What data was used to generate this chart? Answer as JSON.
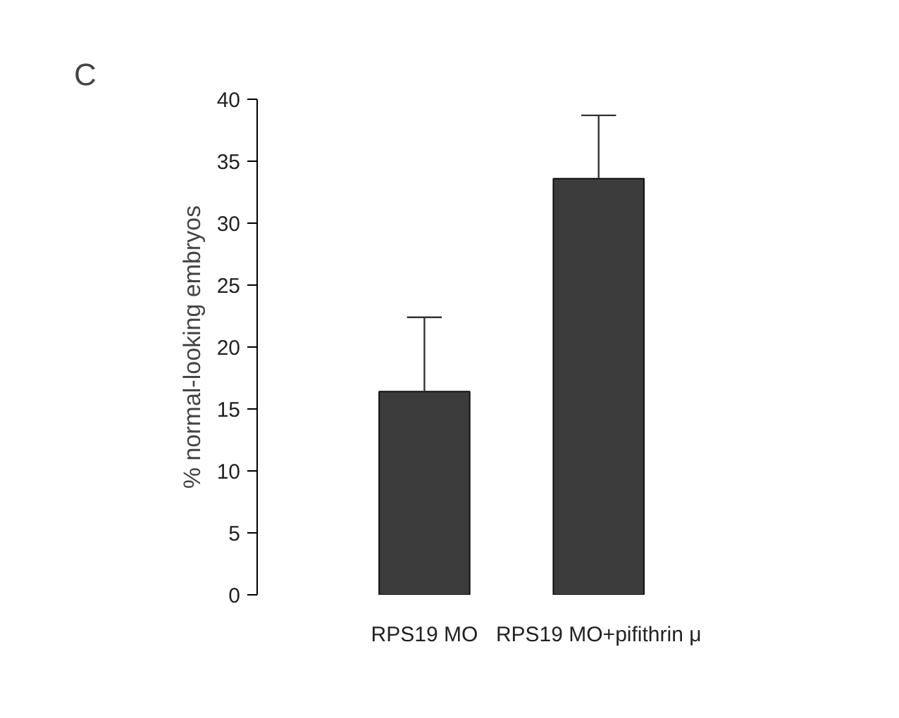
{
  "chart_data": {
    "type": "bar",
    "categories": [
      "RPS19 MO",
      "RPS19 MO+pifithrin μ"
    ],
    "values": [
      16.4,
      33.6
    ],
    "errors": [
      [
        16.4,
        22.4
      ],
      [
        33.6,
        38.7
      ]
    ],
    "color": "#3c3c3c",
    "ylabel": "% normal-looking embryos",
    "ylim": [
      0,
      40
    ],
    "yticks": [
      0,
      5,
      10,
      15,
      20,
      25,
      30,
      35,
      40
    ],
    "grid": false,
    "annotations": [
      "C"
    ]
  }
}
